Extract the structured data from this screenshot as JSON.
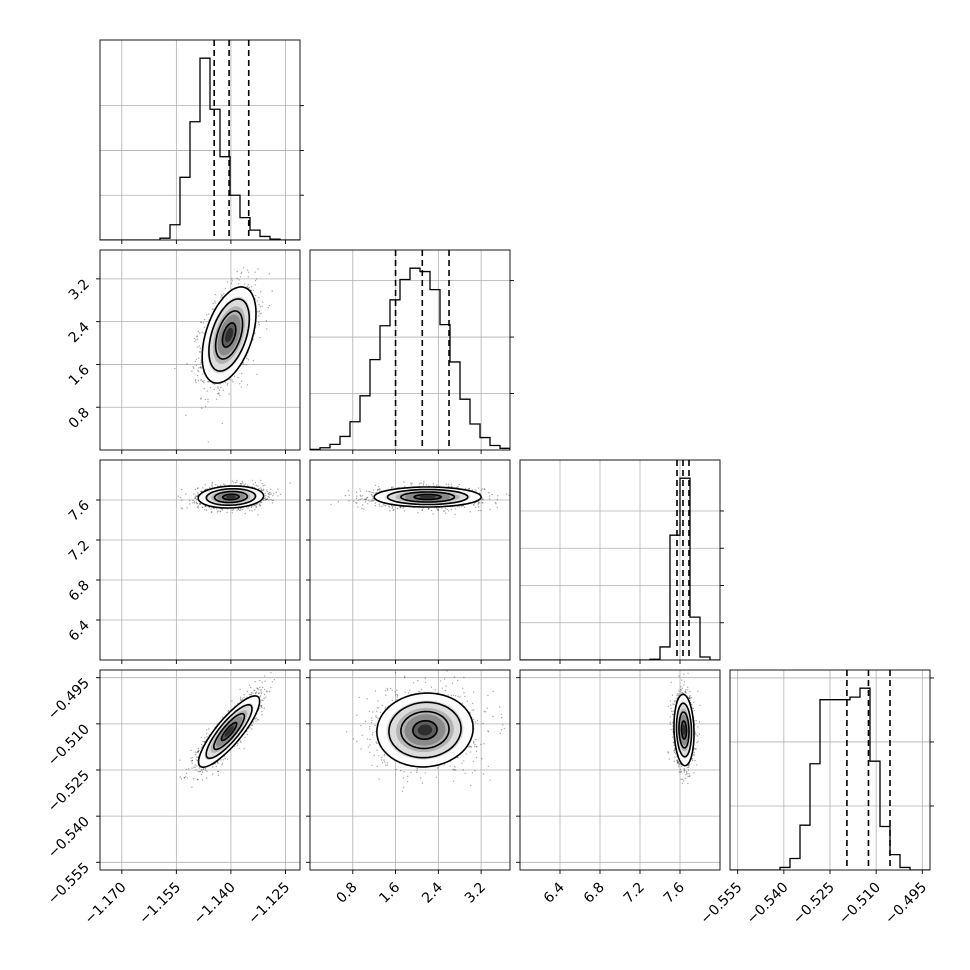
{
  "chart_data": {
    "type": "corner",
    "grid": true,
    "parameters": [
      {
        "range": [
          -1.176,
          -1.121
        ],
        "ticks": [
          -1.17,
          -1.155,
          -1.14,
          -1.125
        ],
        "tick_labels": [
          "−1.170",
          "−1.155",
          "−1.140",
          "−1.125"
        ],
        "histogram": {
          "bin_edges_start": -1.176,
          "bin_step": 0.00275,
          "counts": [
            0,
            0,
            0,
            0,
            0,
            0,
            20,
            170,
            700,
            1320,
            2030,
            1460,
            930,
            500,
            250,
            110,
            40,
            10,
            0,
            0
          ],
          "diag_ticks": [
            500,
            1000,
            1500
          ]
        },
        "quantiles": [
          -1.1446,
          -1.1405,
          -1.1351
        ]
      },
      {
        "range": [
          0.0,
          3.74
        ],
        "ticks": [
          0.8,
          1.6,
          2.4,
          3.2
        ],
        "tick_labels": [
          "0.8",
          "1.6",
          "2.4",
          "3.2"
        ],
        "histogram": {
          "bin_edges_start": 0.0,
          "bin_step": 0.187,
          "counts": [
            5,
            20,
            50,
            120,
            250,
            480,
            800,
            1100,
            1330,
            1510,
            1610,
            1580,
            1420,
            1110,
            780,
            450,
            230,
            110,
            40,
            15
          ],
          "diag_ticks": [
            500,
            1000,
            1500
          ]
        },
        "quantiles": [
          1.6,
          2.1,
          2.6
        ]
      },
      {
        "range": [
          6.0,
          8.0
        ],
        "ticks": [
          6.4,
          6.8,
          7.2,
          7.6
        ],
        "tick_labels": [
          "6.4",
          "6.8",
          "7.2",
          "7.6"
        ],
        "histogram": {
          "bin_edges_start": 6.0,
          "bin_step": 0.1,
          "counts": [
            0,
            0,
            0,
            0,
            0,
            0,
            0,
            0,
            0,
            0,
            0,
            0,
            0,
            20,
            350,
            3350,
            4880,
            1150,
            80,
            0
          ],
          "diag_ticks": [
            1000,
            2000,
            3000,
            4000
          ]
        },
        "quantiles": [
          7.57,
          7.63,
          7.69
        ]
      },
      {
        "range": [
          -0.5575,
          -0.4925
        ],
        "ticks": [
          -0.555,
          -0.54,
          -0.525,
          -0.51,
          -0.495
        ],
        "tick_labels": [
          "−0.555",
          "−0.540",
          "−0.525",
          "−0.510",
          "−0.495"
        ],
        "histogram": {
          "bin_edges_start": -0.5575,
          "bin_step": 0.00325,
          "counts": [
            0,
            0,
            0,
            0,
            0,
            20,
            90,
            350,
            830,
            1330,
            1330,
            1330,
            1350,
            1420,
            850,
            340,
            120,
            20,
            0,
            0
          ],
          "diag_ticks": [
            500,
            1000,
            1500
          ]
        },
        "quantiles": [
          -0.5195,
          -0.5125,
          -0.5055
        ]
      }
    ],
    "pairs": [
      {
        "row": 1,
        "col": 0,
        "mean": [
          -1.1405,
          2.15
        ],
        "sd": [
          0.0037,
          0.45
        ],
        "rho": 0.45
      },
      {
        "row": 2,
        "col": 0,
        "mean": [
          -1.14,
          7.63
        ],
        "sd": [
          0.0045,
          0.055
        ],
        "rho": 0.1
      },
      {
        "row": 2,
        "col": 1,
        "mean": [
          2.2,
          7.63
        ],
        "sd": [
          0.5,
          0.05
        ],
        "rho": 0.0
      },
      {
        "row": 3,
        "col": 0,
        "mean": [
          -1.1405,
          -0.5125
        ],
        "sd": [
          0.0042,
          0.0058
        ],
        "rho": 0.85
      },
      {
        "row": 3,
        "col": 1,
        "mean": [
          2.15,
          -0.512
        ],
        "sd": [
          0.45,
          0.006
        ],
        "rho": 0.05
      },
      {
        "row": 3,
        "col": 2,
        "mean": [
          7.64,
          -0.512
        ],
        "sd": [
          0.05,
          0.0058
        ],
        "rho": -0.1
      }
    ]
  }
}
